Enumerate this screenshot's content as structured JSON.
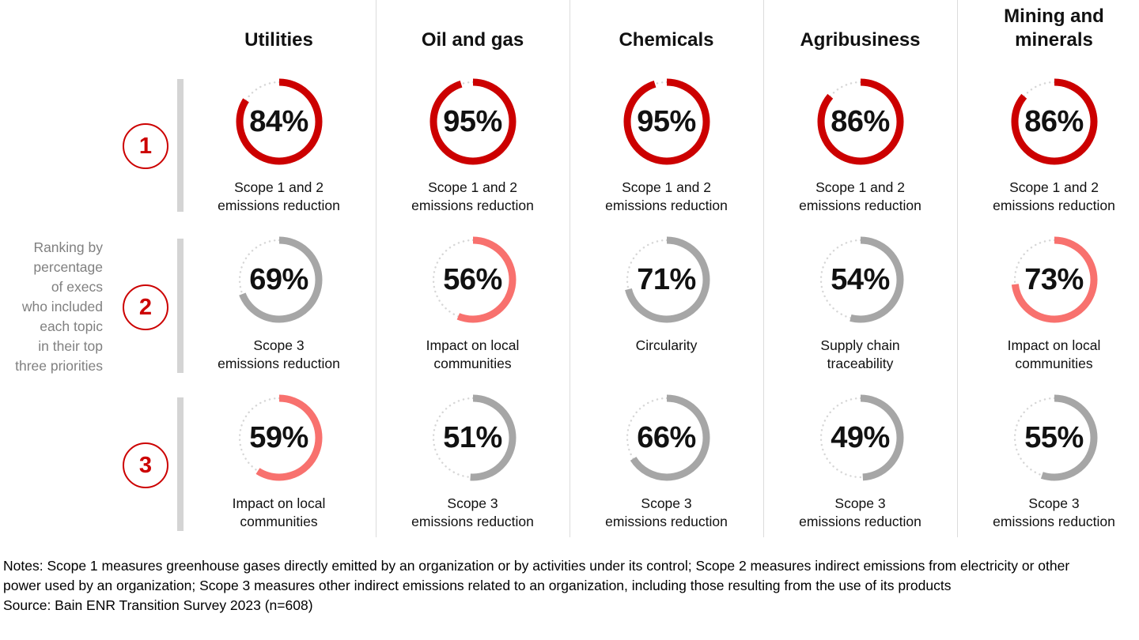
{
  "colors": {
    "red": "#cc0000",
    "coral": "#f8716e",
    "gray": "#a6a6a6",
    "track": "#d6d6d6",
    "caption_gray": "#808080",
    "bar_gray": "#d4d4d4"
  },
  "left_panel": {
    "caption": "Ranking by\npercentage\nof execs\nwho included\neach topic\nin their top\nthree priorities",
    "ranks": [
      "1",
      "2",
      "3"
    ]
  },
  "columns": [
    {
      "name": "Utilities",
      "gauges": [
        {
          "value": 84,
          "tone": "red",
          "label": "Scope 1 and 2\nemissions reduction"
        },
        {
          "value": 69,
          "tone": "gray",
          "label": "Scope 3\nemissions reduction"
        },
        {
          "value": 59,
          "tone": "coral",
          "label": "Impact on local\ncommunities"
        }
      ]
    },
    {
      "name": "Oil and gas",
      "gauges": [
        {
          "value": 95,
          "tone": "red",
          "label": "Scope 1 and 2\nemissions reduction"
        },
        {
          "value": 56,
          "tone": "coral",
          "label": "Impact on local\ncommunities"
        },
        {
          "value": 51,
          "tone": "gray",
          "label": "Scope 3\nemissions reduction"
        }
      ]
    },
    {
      "name": "Chemicals",
      "gauges": [
        {
          "value": 95,
          "tone": "red",
          "label": "Scope 1 and 2\nemissions reduction"
        },
        {
          "value": 71,
          "tone": "gray",
          "label": "Circularity"
        },
        {
          "value": 66,
          "tone": "gray",
          "label": "Scope 3\nemissions reduction"
        }
      ]
    },
    {
      "name": "Agribusiness",
      "gauges": [
        {
          "value": 86,
          "tone": "red",
          "label": "Scope 1 and 2\nemissions reduction"
        },
        {
          "value": 54,
          "tone": "gray",
          "label": "Supply chain\ntraceability"
        },
        {
          "value": 49,
          "tone": "gray",
          "label": "Scope 3\nemissions reduction"
        }
      ]
    },
    {
      "name": "Mining and minerals",
      "display_name": "Mining and\nminerals",
      "gauges": [
        {
          "value": 86,
          "tone": "red",
          "label": "Scope 1 and 2\nemissions reduction"
        },
        {
          "value": 73,
          "tone": "coral",
          "label": "Impact on local\ncommunities"
        },
        {
          "value": 55,
          "tone": "gray",
          "label": "Scope 3\nemissions reduction"
        }
      ]
    }
  ],
  "footer": {
    "notes": "Notes: Scope 1 measures greenhouse gases directly emitted by an organization or by activities under its control; Scope 2 measures indirect emissions from electricity or other power used by an organization; Scope 3 measures other indirect emissions related to an organization, including those resulting from the use of its products",
    "source": "Source: Bain ENR Transition Survey 2023 (n=608)"
  },
  "chart_data": {
    "type": "pie",
    "variant": "small-multiples donut gauges (ring fill = percentage, dotted remainder track)",
    "title": "Ranking by percentage of execs who included each topic in their top three priorities",
    "categories": [
      "Utilities",
      "Oil and gas",
      "Chemicals",
      "Agribusiness",
      "Mining and minerals"
    ],
    "unit": "%",
    "range": [
      0,
      100
    ],
    "series": [
      {
        "name": "Rank 1",
        "values": [
          84,
          95,
          95,
          86,
          86
        ],
        "topics": [
          "Scope 1 and 2 emissions reduction",
          "Scope 1 and 2 emissions reduction",
          "Scope 1 and 2 emissions reduction",
          "Scope 1 and 2 emissions reduction",
          "Scope 1 and 2 emissions reduction"
        ],
        "ring_colors": [
          "#cc0000",
          "#cc0000",
          "#cc0000",
          "#cc0000",
          "#cc0000"
        ]
      },
      {
        "name": "Rank 2",
        "values": [
          69,
          56,
          71,
          54,
          73
        ],
        "topics": [
          "Scope 3 emissions reduction",
          "Impact on local communities",
          "Circularity",
          "Supply chain traceability",
          "Impact on local communities"
        ],
        "ring_colors": [
          "#a6a6a6",
          "#f8716e",
          "#a6a6a6",
          "#a6a6a6",
          "#f8716e"
        ]
      },
      {
        "name": "Rank 3",
        "values": [
          59,
          51,
          66,
          49,
          55
        ],
        "topics": [
          "Impact on local communities",
          "Scope 3 emissions reduction",
          "Scope 3 emissions reduction",
          "Scope 3 emissions reduction",
          "Scope 3 emissions reduction"
        ],
        "ring_colors": [
          "#f8716e",
          "#a6a6a6",
          "#a6a6a6",
          "#a6a6a6",
          "#a6a6a6"
        ]
      }
    ],
    "legend": "none",
    "notes": "Notes: Scope 1 measures greenhouse gases directly emitted by an organization or by activities under its control; Scope 2 measures indirect emissions from electricity or other power used by an organization; Scope 3 measures other indirect emissions related to an organization, including those resulting from the use of its products",
    "source": "Source: Bain ENR Transition Survey 2023 (n=608)"
  }
}
